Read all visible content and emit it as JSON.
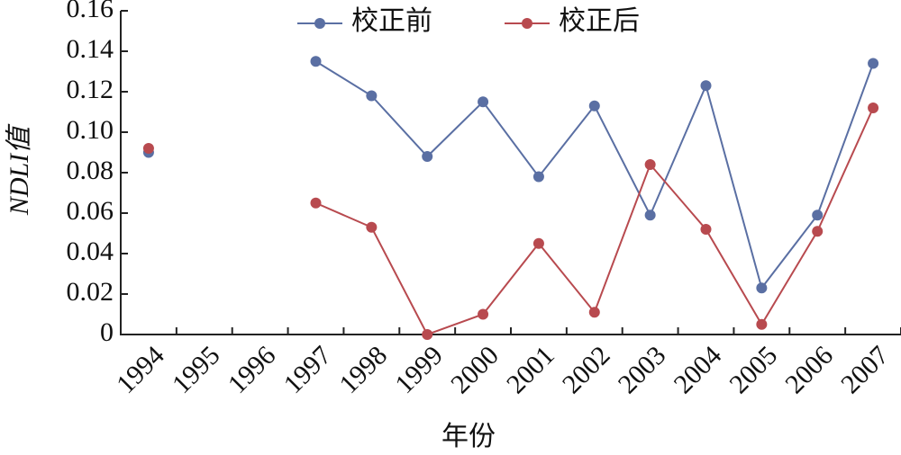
{
  "chart_data": {
    "type": "line",
    "x_label": "年份",
    "y_label": "NDLI值",
    "categories": [
      "1994",
      "1995",
      "1996",
      "1997",
      "1998",
      "1999",
      "2000",
      "2001",
      "2002",
      "2003",
      "2004",
      "2005",
      "2006",
      "2007"
    ],
    "series": [
      {
        "name": "校正前",
        "color": "#5a6fa3",
        "values": [
          0.09,
          null,
          null,
          0.135,
          0.118,
          0.088,
          0.115,
          0.078,
          0.113,
          0.059,
          0.123,
          0.023,
          0.059,
          0.134
        ]
      },
      {
        "name": "校正后",
        "color": "#b84a4f",
        "values": [
          0.092,
          null,
          null,
          0.065,
          0.053,
          0,
          0.01,
          0.045,
          0.011,
          0.084,
          0.052,
          0.005,
          0.051,
          0.112
        ]
      }
    ],
    "ylim": [
      0,
      0.16
    ],
    "yticks": [
      0,
      0.02,
      0.04,
      0.06,
      0.08,
      {
        "value": 0.1,
        "label": "0.10"
      },
      0.12,
      0.14,
      0.16
    ],
    "legend": "top"
  }
}
